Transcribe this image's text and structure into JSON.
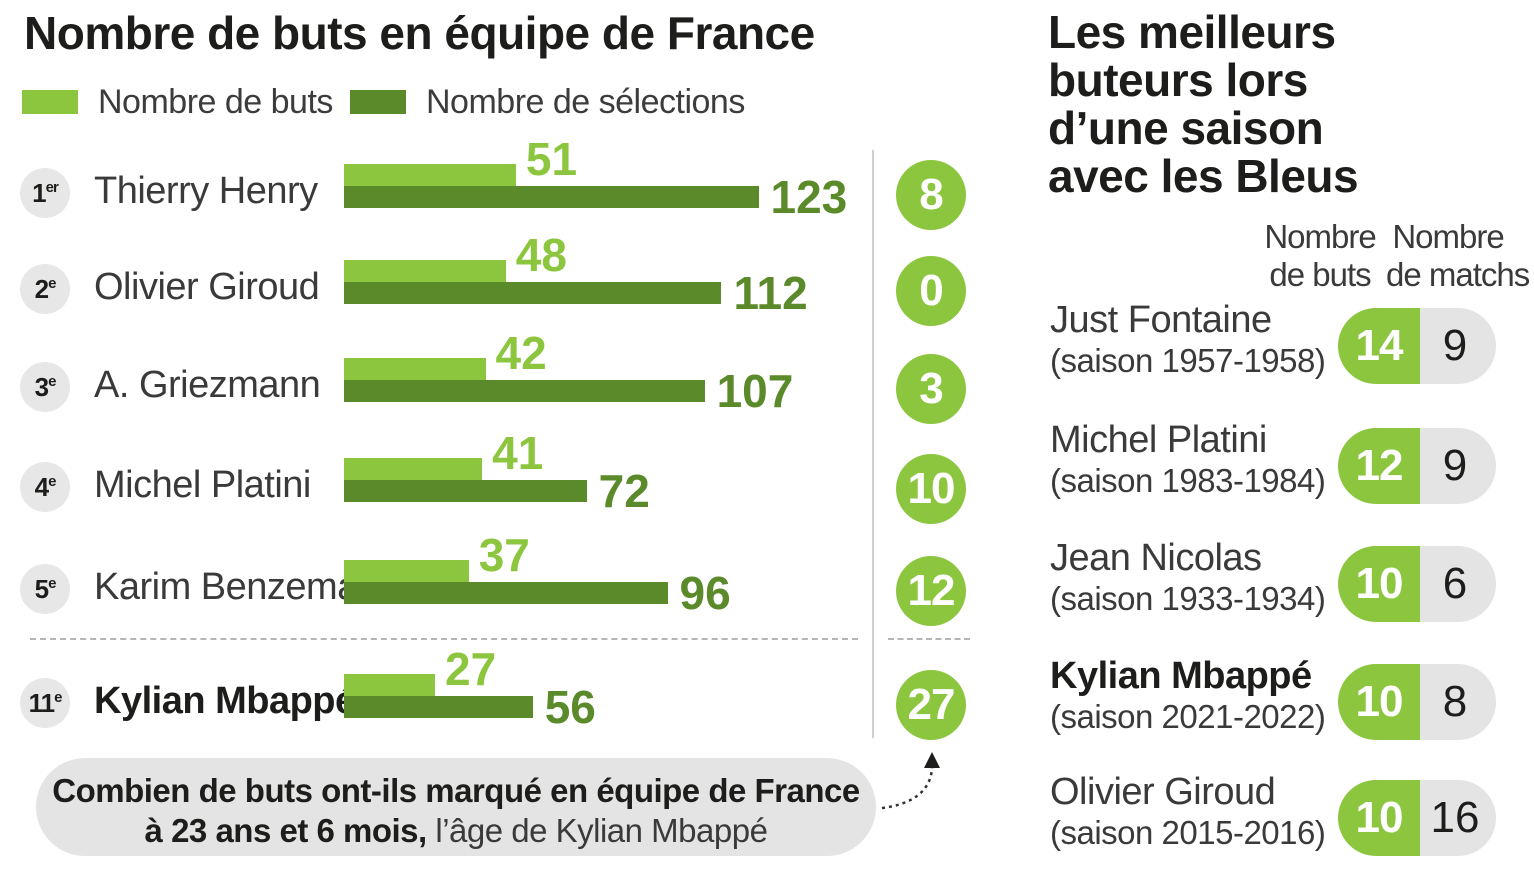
{
  "left_title": "Nombre de buts en équipe de France",
  "legend": [
    {
      "label": "Nombre de buts",
      "color": "#8cc63f"
    },
    {
      "label": "Nombre de sélections",
      "color": "#5a8a2a"
    }
  ],
  "chart_data": [
    {
      "type": "bar",
      "title": "Nombre de buts en équipe de France",
      "categories": [
        "Thierry Henry",
        "Olivier Giroud",
        "A. Griezmann",
        "Michel Platini",
        "Karim Benzema",
        "Kylian Mbappé"
      ],
      "ranks": [
        {
          "num": "1",
          "sup": "er"
        },
        {
          "num": "2",
          "sup": "e"
        },
        {
          "num": "3",
          "sup": "e"
        },
        {
          "num": "4",
          "sup": "e"
        },
        {
          "num": "5",
          "sup": "e"
        },
        {
          "num": "11",
          "sup": "e"
        }
      ],
      "series": [
        {
          "name": "Nombre de buts",
          "color": "#8cc63f",
          "values": [
            51,
            48,
            42,
            41,
            37,
            27
          ]
        },
        {
          "name": "Nombre de sélections",
          "color": "#5a8a2a",
          "values": [
            123,
            112,
            107,
            72,
            96,
            56
          ]
        }
      ],
      "goals_at_23_years_6_months": [
        8,
        0,
        3,
        10,
        12,
        27
      ]
    },
    {
      "type": "table",
      "title": "Les meilleurs buteurs lors d’une saison avec les Bleus",
      "columns": [
        "Nombre de buts",
        "Nombre de matchs"
      ],
      "rows": [
        {
          "name": "Just Fontaine",
          "season": "(saison 1957-1958)",
          "goals": 14,
          "matches": 9
        },
        {
          "name": "Michel Platini",
          "season": "(saison 1983-1984)",
          "goals": 12,
          "matches": 9
        },
        {
          "name": "Jean Nicolas",
          "season": "(saison 1933-1934)",
          "goals": 10,
          "matches": 6
        },
        {
          "name": "Kylian Mbappé",
          "season": "(saison 2021-2022)",
          "goals": 10,
          "matches": 8
        },
        {
          "name": "Olivier Giroud",
          "season": "(saison 2015-2016)",
          "goals": 10,
          "matches": 16
        }
      ]
    }
  ],
  "note": {
    "line1": "Combien de buts ont-ils marqué en équipe de France",
    "line2_bold": "à 23 ans et 6 mois,",
    "line2_rest": " l’âge de Kylian Mbappé"
  },
  "right_title_lines": [
    "Les meilleurs",
    "buteurs lors",
    "d’une saison",
    "avec les Bleus"
  ],
  "col_headers": {
    "goals": [
      "Nombre",
      "de buts"
    ],
    "matches": [
      "Nombre",
      "de matchs"
    ]
  }
}
